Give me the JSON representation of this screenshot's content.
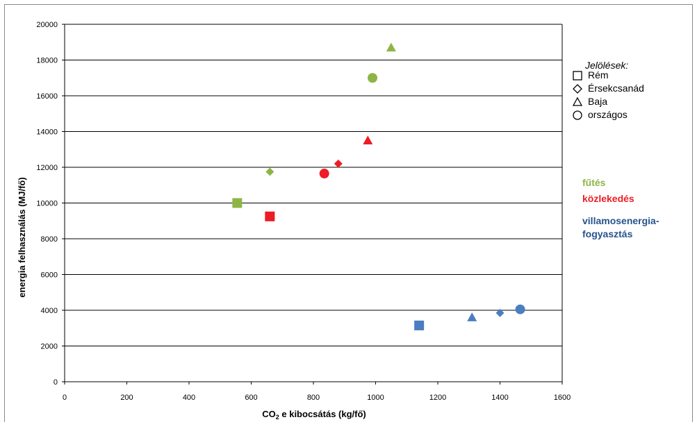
{
  "chart_data": {
    "type": "scatter",
    "xlabel_main": "CO",
    "xlabel_sub": "2",
    "xlabel_rest": " e kibocsátás (kg/fő)",
    "ylabel": "energia felhasználás (MJ/fő)",
    "xlim": [
      0,
      1600
    ],
    "ylim": [
      0,
      20000
    ],
    "xticks": [
      0,
      200,
      400,
      600,
      800,
      1000,
      1200,
      1400,
      1600
    ],
    "yticks": [
      0,
      2000,
      4000,
      6000,
      8000,
      10000,
      12000,
      14000,
      16000,
      18000,
      20000
    ],
    "grid": "horizontal",
    "legend": {
      "title": "Jelölések:",
      "placement": "right",
      "items": [
        {
          "symbol": "square",
          "label": "Rém"
        },
        {
          "symbol": "diamond",
          "label": "Érsekcsanád"
        },
        {
          "symbol": "triangle",
          "label": "Baja"
        },
        {
          "symbol": "circle",
          "label": "országos"
        }
      ]
    },
    "categories": [
      {
        "label": "fűtés",
        "color": "#8db545"
      },
      {
        "label": "közlekedés",
        "color": "#ee1c24"
      },
      {
        "label": "villamosenergia-",
        "label2": "fogyasztás",
        "color": "#27528d"
      }
    ],
    "series": [
      {
        "category": "fűtés",
        "color": "#8db545",
        "points": [
          {
            "shape": "square",
            "x": 555,
            "y": 10000
          },
          {
            "shape": "diamond",
            "x": 660,
            "y": 11750
          },
          {
            "shape": "triangle",
            "x": 1050,
            "y": 18700
          },
          {
            "shape": "circle",
            "x": 990,
            "y": 17000
          }
        ]
      },
      {
        "category": "közlekedés",
        "color": "#ee1c24",
        "points": [
          {
            "shape": "square",
            "x": 660,
            "y": 9250
          },
          {
            "shape": "diamond",
            "x": 880,
            "y": 12200
          },
          {
            "shape": "triangle",
            "x": 975,
            "y": 13500
          },
          {
            "shape": "circle",
            "x": 835,
            "y": 11650
          }
        ]
      },
      {
        "category": "villamosenergia-fogyasztás",
        "color": "#4a7ec0",
        "points": [
          {
            "shape": "square",
            "x": 1140,
            "y": 3150
          },
          {
            "shape": "diamond",
            "x": 1400,
            "y": 3850
          },
          {
            "shape": "triangle",
            "x": 1310,
            "y": 3600
          },
          {
            "shape": "circle",
            "x": 1465,
            "y": 4050
          }
        ]
      }
    ]
  }
}
